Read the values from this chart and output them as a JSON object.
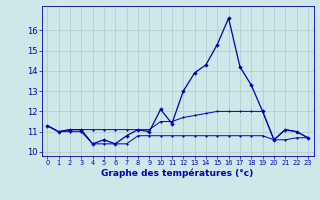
{
  "hours": [
    0,
    1,
    2,
    3,
    4,
    5,
    6,
    7,
    8,
    9,
    10,
    11,
    12,
    13,
    14,
    15,
    16,
    17,
    18,
    19,
    20,
    21,
    22,
    23
  ],
  "temp_main": [
    11.3,
    11.0,
    11.1,
    11.1,
    10.4,
    10.6,
    10.4,
    10.8,
    11.1,
    11.0,
    12.1,
    11.4,
    13.0,
    13.9,
    14.3,
    15.3,
    16.6,
    14.2,
    13.3,
    12.0,
    10.6,
    11.1,
    11.0,
    10.7
  ],
  "temp_max": [
    11.3,
    11.0,
    11.1,
    11.1,
    11.1,
    11.1,
    11.1,
    11.1,
    11.1,
    11.1,
    11.5,
    11.5,
    11.7,
    11.8,
    11.9,
    12.0,
    12.0,
    12.0,
    12.0,
    12.0,
    10.6,
    11.1,
    11.0,
    10.7
  ],
  "temp_min": [
    11.3,
    11.0,
    11.0,
    11.0,
    10.4,
    10.4,
    10.4,
    10.4,
    10.8,
    10.8,
    10.8,
    10.8,
    10.8,
    10.8,
    10.8,
    10.8,
    10.8,
    10.8,
    10.8,
    10.8,
    10.6,
    10.6,
    10.7,
    10.7
  ],
  "line_color": "#0000bb",
  "bg_color": "#cce8e8",
  "grid_color": "#aacccc",
  "xlabel": "Graphe des températures (°c)",
  "ylim": [
    9.8,
    17.2
  ],
  "xlim": [
    -0.5,
    23.5
  ],
  "yticks": [
    10,
    11,
    12,
    13,
    14,
    15,
    16
  ],
  "ytick_fontsize": 6.0,
  "xtick_fontsize": 4.8,
  "xlabel_fontsize": 6.5
}
